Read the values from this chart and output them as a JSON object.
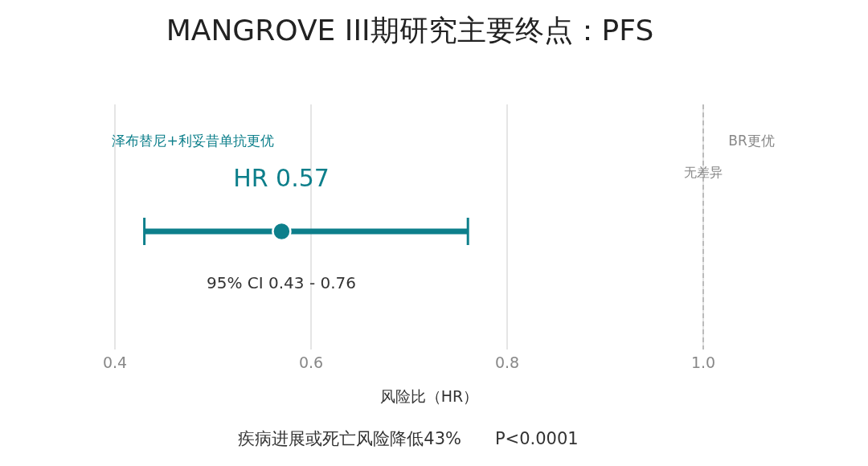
{
  "chart_data": {
    "type": "scatter",
    "orientation": "horizontal",
    "title": "MANGROVE III期研究主要终点：PFS",
    "xlabel": "风险比（HR）",
    "categories": [
      null
    ],
    "values": [
      0.57
    ],
    "errors": [
      [
        0.43,
        0.76
      ]
    ],
    "color": "#0d7f8b",
    "marker": "circle",
    "xlim": [
      0.4,
      1.0
    ],
    "xticks": [
      0.4,
      0.6,
      0.8,
      {
        "value": 1,
        "label": "1.0"
      }
    ],
    "grid": "x",
    "tick_labels": "x",
    "ref_lines": [
      {
        "axis": "x",
        "value": 1.0,
        "label": "无差异",
        "color": "#bbbbbb",
        "line_style": "dashed"
      }
    ],
    "annotations": [
      "泽布替尼+利妥昔单抗更优",
      "BR更优",
      "HR 0.57",
      "95% CI 0.43 - 0.76",
      "疾病进展或死亡风险降低43%　　P<0.0001"
    ]
  }
}
